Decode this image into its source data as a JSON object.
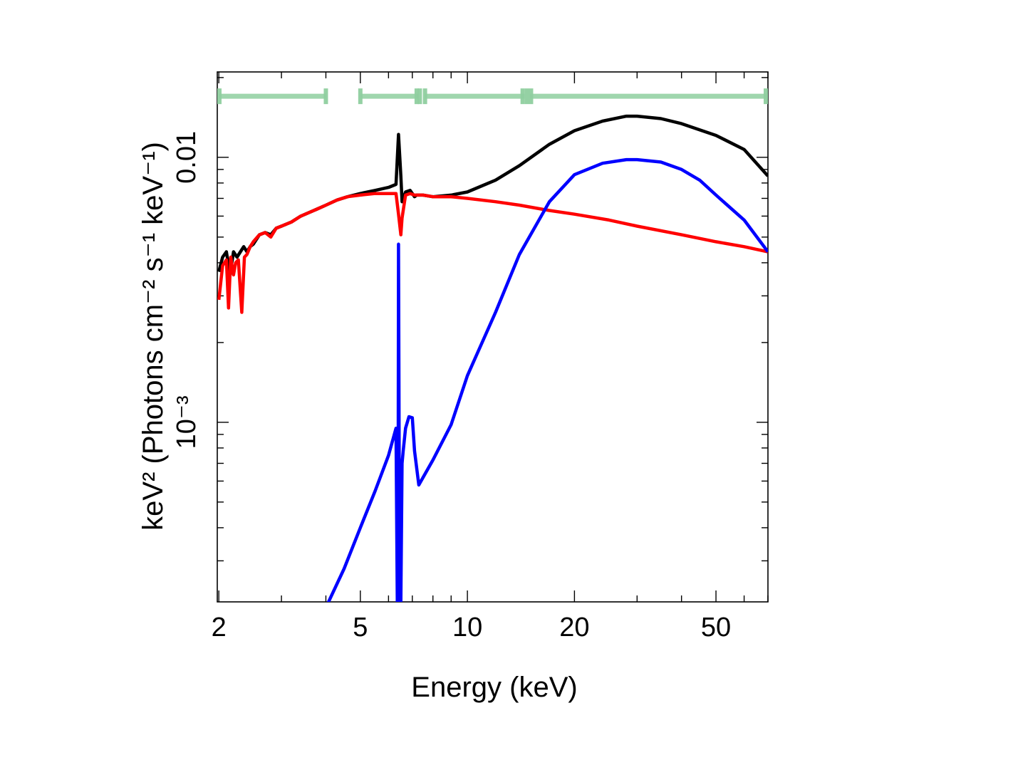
{
  "chart_data": {
    "type": "line",
    "title": "",
    "xlabel": "Energy (keV)",
    "ylabel": "keV² (Photons cm⁻² s⁻¹ keV⁻¹)",
    "x_scale": "log",
    "y_scale": "log",
    "xlim": [
      1.98,
      70
    ],
    "ylim": [
      0.00021,
      0.021
    ],
    "x_ticks": [
      {
        "value": 2,
        "label": "2"
      },
      {
        "value": 5,
        "label": "5"
      },
      {
        "value": 10,
        "label": "10"
      },
      {
        "value": 20,
        "label": "20"
      },
      {
        "value": 50,
        "label": "50"
      }
    ],
    "y_ticks": [
      {
        "value": 0.001,
        "label": "10⁻³"
      },
      {
        "value": 0.01,
        "label": "0.01"
      }
    ],
    "grid": false,
    "series": [
      {
        "color": "#000000",
        "x": [
          2.0,
          2.05,
          2.1,
          2.15,
          2.2,
          2.25,
          2.3,
          2.35,
          2.4,
          2.45,
          2.5,
          2.6,
          2.7,
          2.8,
          2.9,
          3.0,
          3.2,
          3.4,
          3.6,
          3.8,
          4.0,
          4.3,
          4.6,
          5.0,
          5.5,
          6.0,
          6.3,
          6.4,
          6.5,
          6.55,
          6.7,
          6.9,
          7.1,
          7.2,
          7.5,
          8.0,
          9.0,
          10.0,
          12.0,
          14.0,
          17.0,
          20.0,
          24.0,
          28.0,
          30.0,
          35.0,
          40.0,
          50.0,
          60.0,
          70.0
        ],
        "y": [
          0.0037,
          0.0042,
          0.0044,
          0.0036,
          0.0044,
          0.0042,
          0.0044,
          0.0046,
          0.0044,
          0.0046,
          0.0047,
          0.0051,
          0.0052,
          0.0051,
          0.0054,
          0.0055,
          0.0057,
          0.006,
          0.0062,
          0.0064,
          0.0066,
          0.0069,
          0.0071,
          0.0073,
          0.0075,
          0.0077,
          0.0079,
          0.0122,
          0.0085,
          0.0068,
          0.0074,
          0.0075,
          0.0071,
          0.0072,
          0.0072,
          0.0071,
          0.0072,
          0.0074,
          0.0082,
          0.0093,
          0.0112,
          0.0126,
          0.0137,
          0.0143,
          0.0143,
          0.014,
          0.0134,
          0.0121,
          0.0107,
          0.0085
        ]
      },
      {
        "color": "#ff0000",
        "x": [
          2.0,
          2.05,
          2.1,
          2.13,
          2.16,
          2.2,
          2.23,
          2.27,
          2.32,
          2.36,
          2.4,
          2.45,
          2.5,
          2.6,
          2.7,
          2.8,
          2.9,
          3.0,
          3.2,
          3.4,
          3.6,
          3.8,
          4.0,
          4.3,
          4.6,
          5.0,
          5.5,
          6.0,
          6.3,
          6.4,
          6.5,
          6.55,
          6.7,
          6.9,
          7.1,
          7.5,
          8.0,
          9.0,
          10.0,
          12.0,
          14.0,
          17.0,
          20.0,
          25.0,
          30.0,
          40.0,
          50.0,
          60.0,
          70.0
        ],
        "y": [
          0.0029,
          0.0039,
          0.0041,
          0.0027,
          0.0042,
          0.0036,
          0.004,
          0.0041,
          0.0026,
          0.0042,
          0.0043,
          0.0046,
          0.0048,
          0.0051,
          0.0052,
          0.005,
          0.0054,
          0.0055,
          0.0057,
          0.006,
          0.0062,
          0.0064,
          0.0066,
          0.0069,
          0.0071,
          0.0072,
          0.0073,
          0.0073,
          0.0073,
          0.0061,
          0.0051,
          0.0059,
          0.0072,
          0.0073,
          0.0072,
          0.0072,
          0.0071,
          0.0071,
          0.007,
          0.0068,
          0.0066,
          0.0063,
          0.0061,
          0.0058,
          0.0055,
          0.0051,
          0.0048,
          0.0046,
          0.0044
        ]
      },
      {
        "color": "#0000ff",
        "x": [
          4.0,
          4.5,
          5.0,
          5.5,
          6.0,
          6.3,
          6.35,
          6.38,
          6.4,
          6.45,
          6.5,
          6.55,
          6.6,
          6.7,
          6.85,
          7.0,
          7.1,
          7.3,
          8.0,
          9.0,
          10.0,
          12.0,
          14.0,
          17.0,
          20.0,
          24.0,
          28.0,
          30.0,
          35.0,
          40.0,
          45.0,
          50.0,
          60.0,
          70.0
        ],
        "y": [
          0.0002,
          0.00028,
          0.0004,
          0.00055,
          0.00075,
          0.00095,
          0.00021,
          0.00021,
          0.0047,
          0.00021,
          0.00021,
          0.0007,
          0.00078,
          0.00095,
          0.00105,
          0.00104,
          0.00078,
          0.00058,
          0.00072,
          0.00098,
          0.0015,
          0.0026,
          0.0043,
          0.0068,
          0.0086,
          0.0095,
          0.0098,
          0.0098,
          0.0096,
          0.009,
          0.0082,
          0.0072,
          0.0058,
          0.0044
        ]
      }
    ],
    "bands": {
      "color": "#8fcf9f",
      "y": 0.017,
      "segments": [
        [
          2.0,
          4.0
        ],
        [
          5.0,
          7.3
        ],
        [
          7.6,
          14.5
        ],
        [
          15.0,
          70.0
        ]
      ],
      "markers": [
        2.0,
        4.0,
        5.0,
        7.2,
        7.35,
        7.6,
        14.3,
        14.7,
        15.1,
        70.0
      ]
    }
  }
}
